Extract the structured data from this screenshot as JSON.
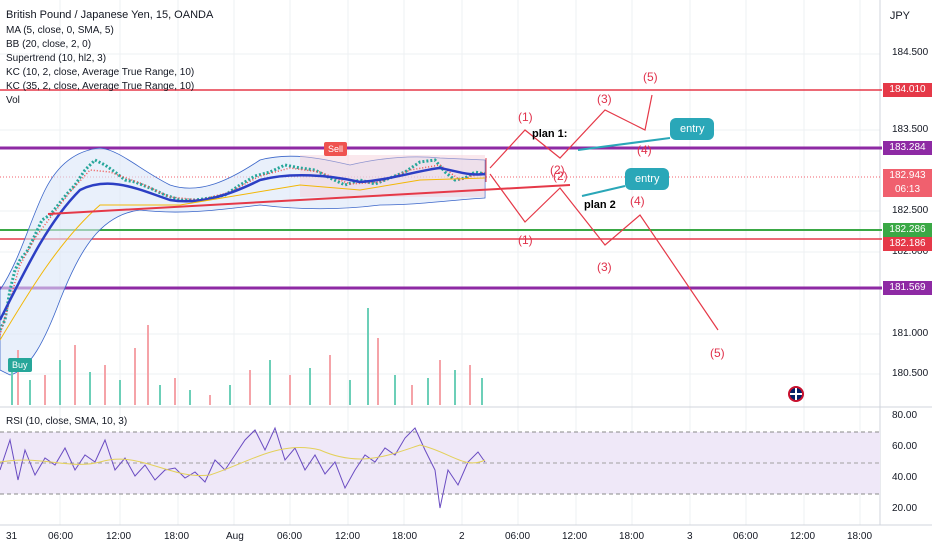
{
  "header": {
    "title": "British Pound / Japanese Yen, 15, OANDA",
    "indicators": [
      "MA (5, close, 0, SMA, 5)",
      "BB (20, close, 2, 0)",
      "Supertrend (10, hl2, 3)",
      "KC (10, 2, close, Average True Range, 10)",
      "KC (35, 2, close, Average True Range, 10)",
      "Vol"
    ]
  },
  "currency": "JPY",
  "price_axis": [
    "184.500",
    "183.500",
    "182.500",
    "182.000",
    "181.000",
    "180.500"
  ],
  "price_boxes": [
    {
      "label": "184.010",
      "color": "#e53948"
    },
    {
      "label": "183.284",
      "color": "#8e2aa4"
    },
    {
      "label": "182.943",
      "color": "#f0606e"
    },
    {
      "label": "06:13",
      "color": "#f0606e"
    },
    {
      "label": "182.286",
      "color": "#3aa845"
    },
    {
      "label": "182.186",
      "color": "#e53948"
    },
    {
      "label": "181.569",
      "color": "#8e2aa4"
    }
  ],
  "rsi": {
    "label": "RSI (10, close, SMA, 10, 3)",
    "axis": [
      "80.00",
      "60.00",
      "40.00",
      "20.00"
    ]
  },
  "time_axis": [
    "31",
    "06:00",
    "12:00",
    "18:00",
    "Aug",
    "06:00",
    "12:00",
    "18:00",
    "2",
    "06:00",
    "12:00",
    "18:00",
    "3",
    "06:00",
    "12:00",
    "18:00"
  ],
  "annotations": {
    "plan1": "plan 1:",
    "plan2": "plan 2",
    "entry1": "entry",
    "entry2": "entry",
    "sell": "Sell",
    "buy": "Buy",
    "waves": [
      "(1)",
      "(2)",
      "(3)",
      "(4)",
      "(5)",
      "(1)",
      "(2)",
      "(3)",
      "(4)",
      "(5)"
    ]
  },
  "colors": {
    "resistance": "#e53948",
    "purple": "#8e2aa4",
    "support_green": "#3aa845",
    "callout": "#2aa7b8"
  }
}
